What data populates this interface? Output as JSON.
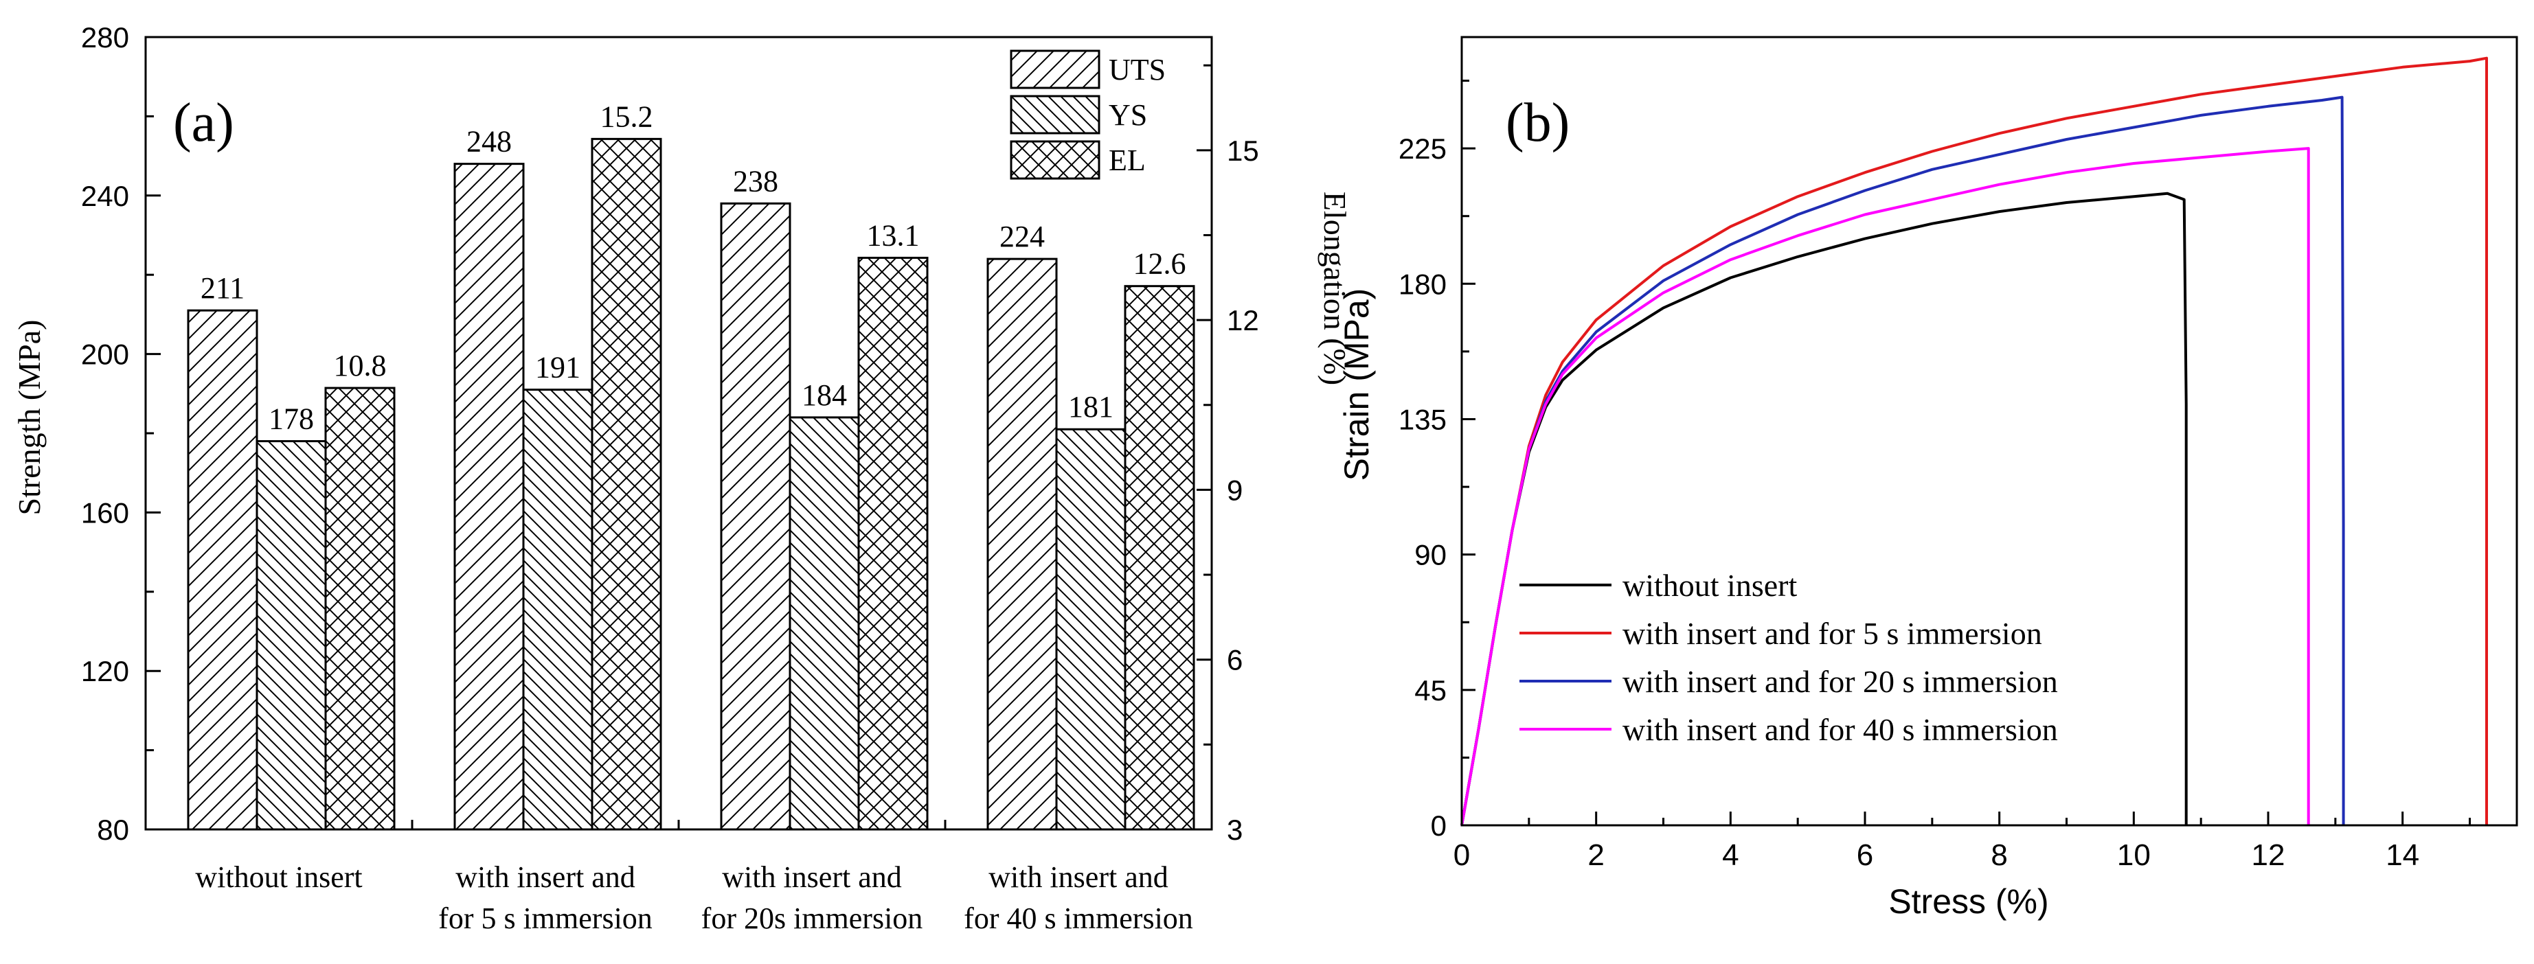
{
  "chart_data": [
    {
      "type": "bar",
      "panel_label": "(a)",
      "categories": [
        [
          "without insert"
        ],
        [
          "with insert and",
          "for 5 s immersion"
        ],
        [
          "with insert and",
          "for 20s immersion"
        ],
        [
          "with insert and",
          "for 40 s immersion"
        ]
      ],
      "series": [
        {
          "name": "UTS",
          "axis": "left",
          "pattern": "diag-right",
          "values": [
            211,
            248,
            238,
            224
          ],
          "labels": [
            "211",
            "248",
            "238",
            "224"
          ]
        },
        {
          "name": "YS",
          "axis": "left",
          "pattern": "diag-left",
          "values": [
            178,
            191,
            184,
            181
          ],
          "labels": [
            "178",
            "191",
            "184",
            "181"
          ]
        },
        {
          "name": "EL",
          "axis": "right",
          "pattern": "crosshatch",
          "values": [
            10.8,
            15.2,
            13.1,
            12.6
          ],
          "labels": [
            "10.8",
            "15.2",
            "13.1",
            "12.6"
          ]
        }
      ],
      "ylabel": "Strength (MPa)",
      "ylim": [
        80,
        280
      ],
      "yticks": [
        80,
        120,
        160,
        200,
        240,
        280
      ],
      "y2label": "Elongation (%)",
      "y2lim": [
        3,
        17
      ],
      "y2ticks": [
        3,
        6,
        9,
        12,
        15
      ],
      "legend": "top-right"
    },
    {
      "type": "line",
      "panel_label": "(b)",
      "xlabel": "Stress (%)",
      "ylabel": "Strain (MPa)",
      "xlim": [
        0,
        15.7
      ],
      "ylim": [
        0,
        262
      ],
      "xticks": [
        0,
        2,
        4,
        6,
        8,
        10,
        12,
        14
      ],
      "yticks": [
        0,
        45,
        90,
        135,
        180,
        225
      ],
      "legend": "bottom-left",
      "series": [
        {
          "name": "without insert",
          "color": "#000000",
          "points": [
            [
              0,
              0
            ],
            [
              0.25,
              32
            ],
            [
              0.5,
              66
            ],
            [
              0.75,
              98
            ],
            [
              1.0,
              124
            ],
            [
              1.25,
              139
            ],
            [
              1.5,
              148
            ],
            [
              2,
              158
            ],
            [
              3,
              172
            ],
            [
              4,
              182
            ],
            [
              5,
              189
            ],
            [
              6,
              195
            ],
            [
              7,
              200
            ],
            [
              8,
              204
            ],
            [
              9,
              207
            ],
            [
              10,
              209
            ],
            [
              10.5,
              210
            ],
            [
              10.75,
              208
            ],
            [
              10.78,
              140
            ],
            [
              10.78,
              0
            ]
          ]
        },
        {
          "name": "with insert and for 5 s immersion",
          "color": "#e31a1c",
          "points": [
            [
              0,
              0
            ],
            [
              0.25,
              32
            ],
            [
              0.5,
              66
            ],
            [
              0.75,
              98
            ],
            [
              1.0,
              126
            ],
            [
              1.25,
              143
            ],
            [
              1.5,
              154
            ],
            [
              2,
              168
            ],
            [
              3,
              186
            ],
            [
              4,
              199
            ],
            [
              5,
              209
            ],
            [
              6,
              217
            ],
            [
              7,
              224
            ],
            [
              8,
              230
            ],
            [
              9,
              235
            ],
            [
              10,
              239
            ],
            [
              11,
              243
            ],
            [
              12,
              246
            ],
            [
              13,
              249
            ],
            [
              14,
              252
            ],
            [
              15,
              254
            ],
            [
              15.25,
              255
            ],
            [
              15.25,
              0
            ]
          ]
        },
        {
          "name": "with insert and for 20 s immersion",
          "color": "#1f2db4",
          "points": [
            [
              0,
              0
            ],
            [
              0.25,
              32
            ],
            [
              0.5,
              66
            ],
            [
              0.75,
              98
            ],
            [
              1.0,
              125
            ],
            [
              1.25,
              141
            ],
            [
              1.5,
              151
            ],
            [
              2,
              164
            ],
            [
              3,
              181
            ],
            [
              4,
              193
            ],
            [
              5,
              203
            ],
            [
              6,
              211
            ],
            [
              7,
              218
            ],
            [
              8,
              223
            ],
            [
              9,
              228
            ],
            [
              10,
              232
            ],
            [
              11,
              236
            ],
            [
              12,
              239
            ],
            [
              12.8,
              241
            ],
            [
              13.1,
              242
            ],
            [
              13.12,
              100
            ],
            [
              13.12,
              0
            ]
          ]
        },
        {
          "name": "with insert and for 40 s immersion",
          "color": "#ff00ff",
          "points": [
            [
              0,
              0
            ],
            [
              0.25,
              32
            ],
            [
              0.5,
              66
            ],
            [
              0.75,
              98
            ],
            [
              1.0,
              125
            ],
            [
              1.25,
              140
            ],
            [
              1.5,
              150
            ],
            [
              2,
              162
            ],
            [
              3,
              177
            ],
            [
              4,
              188
            ],
            [
              5,
              196
            ],
            [
              6,
              203
            ],
            [
              7,
              208
            ],
            [
              8,
              213
            ],
            [
              9,
              217
            ],
            [
              10,
              220
            ],
            [
              11,
              222
            ],
            [
              12,
              224
            ],
            [
              12.6,
              225
            ],
            [
              12.6,
              0
            ]
          ]
        }
      ]
    }
  ]
}
